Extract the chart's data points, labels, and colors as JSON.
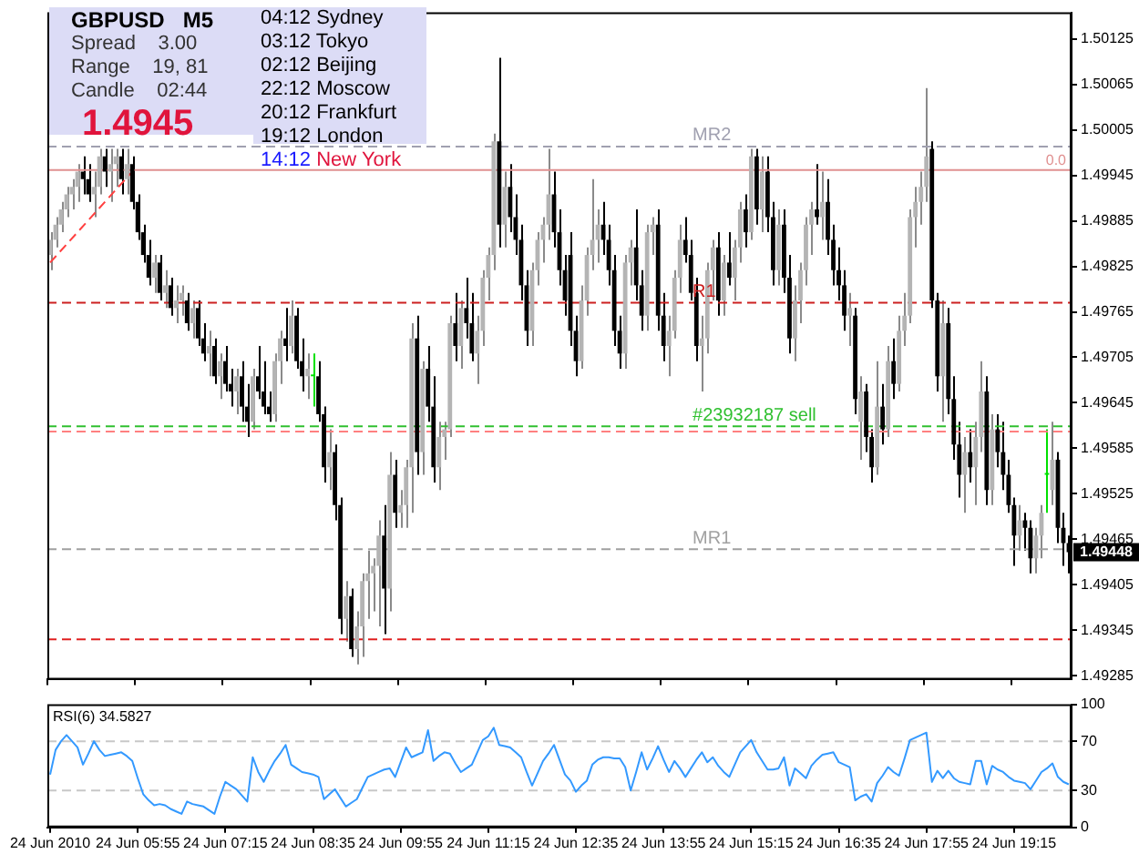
{
  "chart_data": [
    {
      "type": "candlestick",
      "title": "GBPUSD   M5",
      "categories": [
        "24 Jun 2010",
        null,
        null,
        null,
        null,
        null,
        null,
        null,
        null,
        null,
        null,
        null,
        null,
        null,
        null,
        null,
        "24 Jun 05:55",
        null,
        null,
        null,
        null,
        null,
        null,
        null,
        null,
        null,
        null,
        null,
        null,
        null,
        null,
        null,
        "24 Jun 07:15",
        null,
        null,
        null,
        null,
        null,
        null,
        null,
        null,
        null,
        null,
        null,
        null,
        null,
        null,
        null,
        "24 Jun 08:35",
        null,
        null,
        null,
        null,
        null,
        null,
        null,
        null,
        null,
        null,
        null,
        null,
        null,
        null,
        null,
        "24 Jun 09:55",
        null,
        null,
        null,
        null,
        null,
        null,
        null,
        null,
        null,
        null,
        null,
        null,
        null,
        null,
        null,
        "24 Jun 11:15",
        null,
        null,
        null,
        null,
        null,
        null,
        null,
        null,
        null,
        null,
        null,
        null,
        null,
        null,
        null,
        "24 Jun 12:35",
        null,
        null,
        null,
        null,
        null,
        null,
        null,
        null,
        null,
        null,
        null,
        null,
        null,
        null,
        null,
        "24 Jun 13:55",
        null,
        null,
        null,
        null,
        null,
        null,
        null,
        null,
        null,
        null,
        null,
        null,
        null,
        null,
        null,
        "24 Jun 15:15",
        null,
        null,
        null,
        null,
        null,
        null,
        null,
        null,
        null,
        null,
        null,
        null,
        null,
        null,
        null,
        "24 Jun 16:35",
        null,
        null,
        null,
        null,
        null,
        null,
        null,
        null,
        null,
        null,
        null,
        null,
        null,
        null,
        null,
        "24 Jun 17:55",
        null,
        null,
        null,
        null,
        null,
        null,
        null,
        null,
        null,
        null,
        null,
        null,
        null,
        null,
        null,
        "24 Jun 19:15",
        null,
        null,
        null,
        null,
        null,
        null,
        null,
        null,
        null,
        null
      ],
      "ohlc": [
        [
          1.4984,
          1.4987,
          1.4982,
          1.4986
        ],
        [
          1.4986,
          1.4989,
          1.4985,
          1.4988
        ],
        [
          1.4988,
          1.4991,
          1.4987,
          1.499
        ],
        [
          1.499,
          1.4993,
          1.4989,
          1.4992
        ],
        [
          1.4992,
          1.4994,
          1.499,
          1.4993
        ],
        [
          1.4993,
          1.4996,
          1.4991,
          1.4995
        ],
        [
          1.4995,
          1.4997,
          1.4992,
          1.4994
        ],
        [
          1.4994,
          1.4996,
          1.4991,
          1.4992
        ],
        [
          1.4992,
          1.4995,
          1.4989,
          1.4993
        ],
        [
          1.4993,
          1.4998,
          1.4992,
          1.4997
        ],
        [
          1.4997,
          1.4998,
          1.4993,
          1.4995
        ],
        [
          1.4995,
          1.4998,
          1.4991,
          1.4996
        ],
        [
          1.4996,
          1.4998,
          1.4993,
          1.4997
        ],
        [
          1.4997,
          1.4998,
          1.4992,
          1.4994
        ],
        [
          1.4994,
          1.4998,
          1.4992,
          1.4996
        ],
        [
          1.4996,
          1.4997,
          1.499,
          1.4991
        ],
        [
          1.4991,
          1.4992,
          1.4986,
          1.4987
        ],
        [
          1.4987,
          1.4988,
          1.4983,
          1.4984
        ],
        [
          1.4984,
          1.4986,
          1.498,
          1.4981
        ],
        [
          1.4981,
          1.4984,
          1.4979,
          1.4983
        ],
        [
          1.4983,
          1.4984,
          1.4978,
          1.4979
        ],
        [
          1.4979,
          1.4982,
          1.4977,
          1.498
        ],
        [
          1.498,
          1.4981,
          1.4976,
          1.4977
        ],
        [
          1.4977,
          1.498,
          1.4975,
          1.4978
        ],
        [
          1.4978,
          1.498,
          1.4976,
          1.4979
        ],
        [
          1.4978,
          1.4979,
          1.4974,
          1.4975
        ],
        [
          1.4975,
          1.4978,
          1.4973,
          1.4977
        ],
        [
          1.4977,
          1.4978,
          1.4972,
          1.4973
        ],
        [
          1.4973,
          1.4975,
          1.497,
          1.4971
        ],
        [
          1.4971,
          1.4974,
          1.4968,
          1.4972
        ],
        [
          1.4972,
          1.4973,
          1.4967,
          1.4968
        ],
        [
          1.4968,
          1.4971,
          1.4965,
          1.497
        ],
        [
          1.497,
          1.4972,
          1.4966,
          1.4967
        ],
        [
          1.4967,
          1.4969,
          1.4964,
          1.4966
        ],
        [
          1.4966,
          1.4969,
          1.4963,
          1.4968
        ],
        [
          1.4968,
          1.497,
          1.4962,
          1.4964
        ],
        [
          1.4964,
          1.4967,
          1.496,
          1.4962
        ],
        [
          1.4962,
          1.4969,
          1.4961,
          1.4968
        ],
        [
          1.4968,
          1.4972,
          1.4965,
          1.4966
        ],
        [
          1.4966,
          1.497,
          1.4963,
          1.4964
        ],
        [
          1.4964,
          1.4966,
          1.4962,
          1.4963
        ],
        [
          1.4963,
          1.4971,
          1.4962,
          1.497
        ],
        [
          1.497,
          1.4974,
          1.4967,
          1.4973
        ],
        [
          1.4973,
          1.4977,
          1.497,
          1.4972
        ],
        [
          1.4972,
          1.4978,
          1.4971,
          1.4976
        ],
        [
          1.4976,
          1.4977,
          1.4969,
          1.497
        ],
        [
          1.497,
          1.4973,
          1.4966,
          1.4968
        ],
        [
          1.4968,
          1.4971,
          1.4965,
          1.4969
        ],
        [
          1.4968,
          1.4971,
          1.4964,
          1.4968
        ],
        [
          1.4968,
          1.497,
          1.4962,
          1.4963
        ],
        [
          1.4963,
          1.4964,
          1.4954,
          1.4956
        ],
        [
          1.4956,
          1.4961,
          1.4953,
          1.4958
        ],
        [
          1.4958,
          1.4959,
          1.4949,
          1.4951
        ],
        [
          1.4951,
          1.4952,
          1.4934,
          1.4936
        ],
        [
          1.4936,
          1.4941,
          1.4933,
          1.4939
        ],
        [
          1.4939,
          1.494,
          1.4931,
          1.4932
        ],
        [
          1.4932,
          1.4937,
          1.493,
          1.4935
        ],
        [
          1.4935,
          1.4942,
          1.4931,
          1.4941
        ],
        [
          1.4941,
          1.4945,
          1.4936,
          1.4942
        ],
        [
          1.4942,
          1.4944,
          1.4937,
          1.4943
        ],
        [
          1.4943,
          1.4949,
          1.4935,
          1.4947
        ],
        [
          1.4947,
          1.4951,
          1.4934,
          1.494
        ],
        [
          1.494,
          1.4958,
          1.4937,
          1.4955
        ],
        [
          1.4955,
          1.4957,
          1.4948,
          1.495
        ],
        [
          1.495,
          1.4953,
          1.4948,
          1.4951
        ],
        [
          1.4951,
          1.4957,
          1.4948,
          1.4956
        ],
        [
          1.4956,
          1.4975,
          1.495,
          1.4973
        ],
        [
          1.4973,
          1.4976,
          1.4955,
          1.4958
        ],
        [
          1.4958,
          1.497,
          1.4955,
          1.4969
        ],
        [
          1.4969,
          1.4972,
          1.4962,
          1.4964
        ],
        [
          1.4964,
          1.4968,
          1.4954,
          1.4956
        ],
        [
          1.4956,
          1.4962,
          1.4953,
          1.496
        ],
        [
          1.496,
          1.4962,
          1.4957,
          1.4961
        ],
        [
          1.4961,
          1.4976,
          1.496,
          1.4975
        ],
        [
          1.4975,
          1.4979,
          1.497,
          1.4972
        ],
        [
          1.4972,
          1.4978,
          1.4969,
          1.4977
        ],
        [
          1.4977,
          1.4981,
          1.4973,
          1.4975
        ],
        [
          1.4975,
          1.4979,
          1.497,
          1.4971
        ],
        [
          1.4971,
          1.4976,
          1.4967,
          1.4974
        ],
        [
          1.4974,
          1.4982,
          1.4972,
          1.4981
        ],
        [
          1.4981,
          1.4985,
          1.4978,
          1.4984
        ],
        [
          1.4984,
          1.5,
          1.4982,
          1.4999
        ],
        [
          1.4999,
          1.501,
          1.4985,
          1.4988
        ],
        [
          1.4988,
          1.4995,
          1.4985,
          1.4993
        ],
        [
          1.4993,
          1.4996,
          1.4987,
          1.4989
        ],
        [
          1.4989,
          1.4992,
          1.4984,
          1.4986
        ],
        [
          1.4986,
          1.4988,
          1.4978,
          1.498
        ],
        [
          1.498,
          1.4982,
          1.4972,
          1.4974
        ],
        [
          1.4974,
          1.4983,
          1.4972,
          1.4982
        ],
        [
          1.4982,
          1.4987,
          1.498,
          1.4986
        ],
        [
          1.4986,
          1.4989,
          1.4983,
          1.4988
        ],
        [
          1.4988,
          1.4998,
          1.4986,
          1.4992
        ],
        [
          1.4992,
          1.4995,
          1.4985,
          1.4987
        ],
        [
          1.4987,
          1.499,
          1.498,
          1.4982
        ],
        [
          1.4982,
          1.4984,
          1.4976,
          1.4978
        ],
        [
          1.4984,
          1.4987,
          1.4972,
          1.4974
        ],
        [
          1.4974,
          1.4976,
          1.4968,
          1.497
        ],
        [
          1.497,
          1.498,
          1.4969,
          1.4978
        ],
        [
          1.4978,
          1.4985,
          1.4976,
          1.4984
        ],
        [
          1.4984,
          1.4994,
          1.4982,
          1.4986
        ],
        [
          1.4986,
          1.499,
          1.4983,
          1.4988
        ],
        [
          1.4988,
          1.4991,
          1.4984,
          1.4986
        ],
        [
          1.4986,
          1.4988,
          1.498,
          1.4982
        ],
        [
          1.4982,
          1.4984,
          1.4972,
          1.4974
        ],
        [
          1.4974,
          1.4976,
          1.4969,
          1.4971
        ],
        [
          1.4971,
          1.4984,
          1.4969,
          1.4983
        ],
        [
          1.4983,
          1.4986,
          1.498,
          1.4985
        ],
        [
          1.4985,
          1.499,
          1.4978,
          1.498
        ],
        [
          1.498,
          1.4982,
          1.4974,
          1.4976
        ],
        [
          1.4976,
          1.4988,
          1.4974,
          1.4987
        ],
        [
          1.4987,
          1.4989,
          1.4984,
          1.4988
        ],
        [
          1.4988,
          1.499,
          1.4974,
          1.4976
        ],
        [
          1.4976,
          1.4979,
          1.497,
          1.4972
        ],
        [
          1.4972,
          1.4976,
          1.4968,
          1.4974
        ],
        [
          1.4974,
          1.4982,
          1.4973,
          1.4981
        ],
        [
          1.4981,
          1.4988,
          1.4979,
          1.4986
        ],
        [
          1.4986,
          1.4989,
          1.4983,
          1.4984
        ],
        [
          1.4984,
          1.4986,
          1.4978,
          1.4979
        ],
        [
          1.4979,
          1.4981,
          1.497,
          1.4972
        ],
        [
          1.4972,
          1.4976,
          1.4966,
          1.4973
        ],
        [
          1.4973,
          1.4983,
          1.4971,
          1.4982
        ],
        [
          1.4982,
          1.4986,
          1.4978,
          1.4985
        ],
        [
          1.4985,
          1.4987,
          1.4976,
          1.4978
        ],
        [
          1.4978,
          1.4984,
          1.4976,
          1.4983
        ],
        [
          1.4983,
          1.4987,
          1.498,
          1.4981
        ],
        [
          1.4981,
          1.4986,
          1.4978,
          1.4985
        ],
        [
          1.4985,
          1.4991,
          1.4983,
          1.499
        ],
        [
          1.499,
          1.4992,
          1.4985,
          1.4987
        ],
        [
          1.4987,
          1.4998,
          1.4986,
          1.4997
        ],
        [
          1.4997,
          1.4998,
          1.4988,
          1.499
        ],
        [
          1.499,
          1.4997,
          1.4987,
          1.4995
        ],
        [
          1.4995,
          1.4997,
          1.4987,
          1.4989
        ],
        [
          1.4989,
          1.4991,
          1.498,
          1.4982
        ],
        [
          1.4982,
          1.499,
          1.498,
          1.4988
        ],
        [
          1.4988,
          1.499,
          1.4979,
          1.4981
        ],
        [
          1.4981,
          1.4984,
          1.4971,
          1.4973
        ],
        [
          1.4973,
          1.498,
          1.497,
          1.4978
        ],
        [
          1.4978,
          1.4983,
          1.4975,
          1.4982
        ],
        [
          1.4982,
          1.4989,
          1.498,
          1.4988
        ],
        [
          1.4988,
          1.4991,
          1.4984,
          1.499
        ],
        [
          1.499,
          1.4996,
          1.4988,
          1.4989
        ],
        [
          1.4989,
          1.4995,
          1.4986,
          1.4991
        ],
        [
          1.4991,
          1.4994,
          1.4984,
          1.4986
        ],
        [
          1.4986,
          1.4988,
          1.498,
          1.4982
        ],
        [
          1.4982,
          1.4985,
          1.4978,
          1.498
        ],
        [
          1.498,
          1.4982,
          1.4974,
          1.4976
        ],
        [
          1.4976,
          1.4979,
          1.4972,
          1.4977
        ],
        [
          1.4976,
          1.4977,
          1.4963,
          1.4965
        ],
        [
          1.4962,
          1.4968,
          1.4957,
          1.4966
        ],
        [
          1.4966,
          1.4967,
          1.4958,
          1.496
        ],
        [
          1.496,
          1.4961,
          1.4954,
          1.4956
        ],
        [
          1.4956,
          1.497,
          1.4955,
          1.4964
        ],
        [
          1.4964,
          1.4967,
          1.4959,
          1.4961
        ],
        [
          1.4961,
          1.4972,
          1.496,
          1.497
        ],
        [
          1.497,
          1.4973,
          1.4965,
          1.4967
        ],
        [
          1.4967,
          1.4976,
          1.4966,
          1.4974
        ],
        [
          1.4974,
          1.4979,
          1.4972,
          1.4976
        ],
        [
          1.4976,
          1.499,
          1.4975,
          1.4989
        ],
        [
          1.4989,
          1.4993,
          1.4985,
          1.4991
        ],
        [
          1.4991,
          1.4995,
          1.4988,
          1.4993
        ],
        [
          1.4993,
          1.5006,
          1.4991,
          1.4997
        ],
        [
          1.4998,
          1.4999,
          1.4977,
          1.4978
        ],
        [
          1.4978,
          1.4979,
          1.4966,
          1.4968
        ],
        [
          1.4968,
          1.4978,
          1.4962,
          1.4975
        ],
        [
          1.4975,
          1.4977,
          1.4963,
          1.4965
        ],
        [
          1.4965,
          1.4968,
          1.4957,
          1.4959
        ],
        [
          1.4959,
          1.4962,
          1.4952,
          1.4955
        ],
        [
          1.4955,
          1.496,
          1.495,
          1.4958
        ],
        [
          1.4958,
          1.4961,
          1.4954,
          1.4956
        ],
        [
          1.4956,
          1.4962,
          1.4951,
          1.496
        ],
        [
          1.496,
          1.497,
          1.4958,
          1.4966
        ],
        [
          1.4966,
          1.4968,
          1.4951,
          1.4953
        ],
        [
          1.4953,
          1.4963,
          1.4951,
          1.4961
        ],
        [
          1.4961,
          1.4963,
          1.4956,
          1.4958
        ],
        [
          1.4958,
          1.4962,
          1.4953,
          1.4955
        ],
        [
          1.4955,
          1.4957,
          1.495,
          1.4951
        ],
        [
          1.4951,
          1.4952,
          1.4943,
          1.4947
        ],
        [
          1.4947,
          1.4951,
          1.4945,
          1.4949
        ],
        [
          1.4949,
          1.495,
          1.4945,
          1.4948
        ],
        [
          1.4948,
          1.4949,
          1.4942,
          1.4944
        ],
        [
          1.4944,
          1.4948,
          1.4942,
          1.4947
        ],
        [
          1.4947,
          1.4951,
          1.4944,
          1.495
        ],
        [
          1.4955,
          1.4961,
          1.495,
          1.4955
        ],
        [
          1.4953,
          1.4962,
          1.4951,
          1.4957
        ],
        [
          1.4957,
          1.4958,
          1.4946,
          1.4948
        ],
        [
          1.4948,
          1.495,
          1.4943,
          1.4946
        ],
        [
          1.4946,
          1.4947,
          1.4942,
          1.49448
        ]
      ],
      "series": [
        {
          "type": "line",
          "color": "#ff4040",
          "line_style": "dashed",
          "values": [
            1.4983,
            null,
            null,
            null,
            null,
            null,
            null,
            null,
            null,
            null,
            null,
            null,
            null,
            null,
            null,
            1.4995,
            null,
            null,
            null,
            null,
            null,
            null,
            null,
            null,
            null,
            null,
            null,
            null,
            null,
            null,
            null,
            null,
            null,
            null,
            null,
            null,
            null,
            null,
            null,
            null,
            null,
            null,
            null,
            null,
            null,
            null,
            null,
            null,
            null,
            null,
            null,
            null,
            null,
            null,
            null,
            null,
            null,
            null,
            null,
            null,
            null,
            null,
            null,
            null,
            null,
            null,
            null,
            null,
            null,
            null,
            null,
            null,
            null,
            null,
            null,
            null,
            null,
            null,
            null,
            null,
            null,
            null,
            null,
            null,
            null,
            null,
            null,
            null,
            null,
            null,
            null,
            null,
            null,
            null,
            null,
            null,
            null,
            null,
            null,
            null,
            null,
            null,
            null,
            null,
            null,
            null,
            null,
            null,
            null,
            null,
            null,
            null,
            null,
            null,
            null,
            null,
            null,
            null,
            null,
            null,
            null,
            null,
            null,
            null,
            null,
            null,
            null,
            null,
            null,
            null,
            null,
            null,
            null,
            null,
            null,
            null,
            null,
            null,
            null,
            null,
            null,
            null,
            null,
            null,
            null,
            null,
            null,
            null,
            null,
            null,
            null,
            null,
            null,
            null,
            null,
            null,
            null,
            null,
            null,
            null,
            null,
            null,
            null,
            null,
            null,
            null,
            null,
            null,
            null,
            null,
            null,
            null,
            null,
            null,
            null,
            null,
            null,
            null,
            null,
            null,
            null,
            null,
            null,
            null,
            null,
            null,
            null
          ]
        }
      ],
      "ylim": [
        1.4928,
        1.5016
      ],
      "yticks": [
        1.50125,
        1.50065,
        1.50005,
        1.49945,
        1.49885,
        1.49825,
        1.49765,
        1.49705,
        1.49645,
        1.49585,
        1.49525,
        1.49465,
        1.49405,
        1.49345,
        1.49285
      ],
      "tick_labels": "y",
      "ref_lines": [
        {
          "axis": "y",
          "value": 1.49983,
          "label": "MR2",
          "color": "#a0a0b0",
          "line_style": "dashed"
        },
        {
          "axis": "y",
          "value": 1.49952,
          "label": null,
          "color": "#e09090",
          "line_style": "solid"
        },
        {
          "axis": "y",
          "value": 1.49777,
          "label": "R1",
          "color": "#cc2020",
          "line_style": "dashed"
        },
        {
          "axis": "y",
          "value": 1.49614,
          "label": "#23932187 sell",
          "color": "#30c030",
          "line_style": "dashed"
        },
        {
          "axis": "y",
          "value": 1.49607,
          "label": null,
          "color": "#ff8080",
          "line_style": "dashed"
        },
        {
          "axis": "y",
          "value": 1.49452,
          "label": "MR1",
          "color": "#a0a0a0",
          "line_style": "dashed"
        },
        {
          "axis": "y",
          "value": 1.49333,
          "label": null,
          "color": "#e02020",
          "line_style": "dashed"
        }
      ],
      "annotations": [
        "Spread    3.00",
        "Range    19, 81",
        "Candle    02:44",
        "1.4945",
        "04:12 Sydney",
        "03:12 Tokyo",
        "02:12 Beijing",
        "22:12 Moscow",
        "20:12 Frankfurt",
        "19:12 London",
        "14:12 New York",
        "1.49448",
        "0.0"
      ]
    },
    {
      "type": "line",
      "title": "RSI(6) 34.5827",
      "series": [
        {
          "color": "#3399ff",
          "values": [
            43,
            63,
            70,
            75,
            70,
            65,
            51,
            60,
            70,
            63,
            58,
            59,
            60,
            61,
            58,
            54,
            40,
            27,
            22,
            18,
            19,
            18,
            15,
            13,
            11,
            21,
            19,
            18,
            17,
            14,
            11,
            25,
            37,
            34,
            31,
            26,
            21,
            57,
            45,
            37,
            46,
            54,
            60,
            67,
            51,
            48,
            45,
            44,
            43,
            41,
            23,
            27,
            31,
            24,
            17,
            20,
            23,
            32,
            41,
            43,
            45,
            47,
            48,
            41,
            53,
            65,
            57,
            59,
            61,
            79,
            54,
            58,
            61,
            60,
            52,
            45,
            48,
            51,
            61,
            71,
            74,
            81,
            67,
            66,
            65,
            61,
            57,
            45,
            34,
            44,
            54,
            60,
            67,
            55,
            43,
            38,
            29,
            34,
            38,
            51,
            55,
            57,
            57,
            56,
            56,
            49,
            30,
            45,
            61,
            47,
            56,
            66,
            55,
            45,
            54,
            48,
            41,
            48,
            55,
            61,
            53,
            57,
            50,
            45,
            41,
            51,
            61,
            66,
            71,
            61,
            54,
            47,
            47,
            48,
            57,
            34,
            48,
            44,
            40,
            50,
            55,
            59,
            60,
            61,
            53,
            51,
            49,
            22,
            25,
            27,
            21,
            36,
            42,
            49,
            45,
            42,
            56,
            71,
            73,
            75,
            77,
            37,
            46,
            40,
            46,
            40,
            37,
            36,
            35,
            54,
            54,
            35,
            50,
            47,
            45,
            41,
            38,
            37,
            36,
            31,
            38,
            45,
            48,
            52,
            41,
            37,
            35
          ]
        }
      ],
      "ylim": [
        0,
        100
      ],
      "yticks": [
        0,
        30,
        70,
        100
      ],
      "marker": "none",
      "ref_lines": [
        {
          "axis": "y",
          "value": 30,
          "color": "#c8c8c8",
          "line_style": "dashed"
        },
        {
          "axis": "y",
          "value": 70,
          "color": "#c8c8c8",
          "line_style": "dashed"
        }
      ]
    }
  ]
}
